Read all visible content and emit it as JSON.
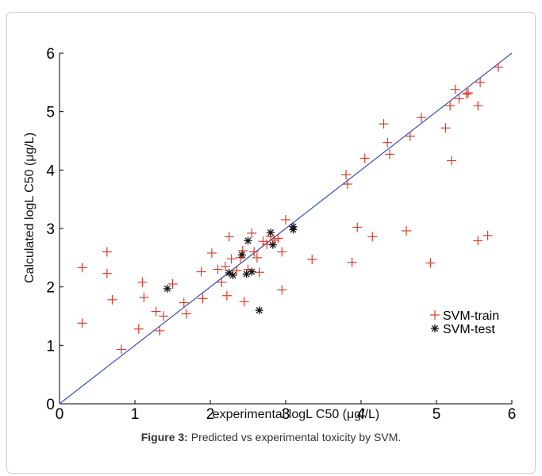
{
  "chart_data": {
    "type": "scatter",
    "xlabel": "experimental logL C50 (μg//L)",
    "ylabel": "Calculated logL C50 (μg/L)",
    "xlim": [
      0,
      6
    ],
    "ylim": [
      0,
      6
    ],
    "xticks": [
      "0",
      "1",
      "2",
      "3",
      "4",
      "5",
      "6"
    ],
    "yticks": [
      "0",
      "1",
      "2",
      "3",
      "4",
      "5",
      "6"
    ],
    "grid": false,
    "legend_position": "lower-right",
    "reference_line": {
      "x": [
        0,
        6
      ],
      "y": [
        0,
        6
      ],
      "color": "#3a4fb5"
    },
    "series": [
      {
        "name": "SVM-train",
        "marker": "+",
        "color": "#d93b2b",
        "points": [
          [
            0.3,
            2.33
          ],
          [
            0.3,
            1.38
          ],
          [
            0.63,
            2.6
          ],
          [
            0.63,
            2.23
          ],
          [
            0.7,
            1.78
          ],
          [
            0.82,
            0.93
          ],
          [
            1.05,
            1.28
          ],
          [
            1.1,
            2.08
          ],
          [
            1.12,
            1.82
          ],
          [
            1.28,
            1.58
          ],
          [
            1.33,
            1.25
          ],
          [
            1.38,
            1.5
          ],
          [
            1.5,
            2.05
          ],
          [
            1.65,
            1.73
          ],
          [
            1.68,
            1.54
          ],
          [
            1.88,
            2.26
          ],
          [
            1.9,
            1.8
          ],
          [
            2.02,
            2.58
          ],
          [
            2.1,
            2.3
          ],
          [
            2.15,
            2.08
          ],
          [
            2.2,
            2.35
          ],
          [
            2.22,
            1.85
          ],
          [
            2.25,
            2.86
          ],
          [
            2.28,
            2.48
          ],
          [
            2.35,
            2.28
          ],
          [
            2.4,
            2.5
          ],
          [
            2.43,
            2.62
          ],
          [
            2.45,
            1.75
          ],
          [
            2.5,
            2.3
          ],
          [
            2.55,
            2.92
          ],
          [
            2.58,
            2.6
          ],
          [
            2.62,
            2.5
          ],
          [
            2.65,
            2.25
          ],
          [
            2.7,
            2.78
          ],
          [
            2.75,
            2.73
          ],
          [
            2.8,
            2.86
          ],
          [
            2.85,
            2.8
          ],
          [
            2.9,
            2.83
          ],
          [
            2.95,
            2.6
          ],
          [
            2.95,
            1.95
          ],
          [
            3.0,
            3.15
          ],
          [
            3.35,
            2.47
          ],
          [
            3.8,
            3.92
          ],
          [
            3.82,
            3.76
          ],
          [
            3.88,
            2.42
          ],
          [
            3.95,
            3.02
          ],
          [
            4.05,
            4.2
          ],
          [
            4.15,
            2.86
          ],
          [
            4.3,
            4.79
          ],
          [
            4.35,
            4.47
          ],
          [
            4.38,
            4.27
          ],
          [
            4.6,
            2.96
          ],
          [
            4.65,
            4.58
          ],
          [
            4.8,
            4.9
          ],
          [
            4.92,
            2.41
          ],
          [
            5.12,
            4.72
          ],
          [
            5.18,
            5.1
          ],
          [
            5.2,
            4.16
          ],
          [
            5.25,
            5.38
          ],
          [
            5.3,
            5.22
          ],
          [
            5.4,
            5.3
          ],
          [
            5.42,
            5.32
          ],
          [
            5.55,
            5.1
          ],
          [
            5.55,
            2.79
          ],
          [
            5.58,
            5.5
          ],
          [
            5.68,
            2.88
          ],
          [
            5.82,
            5.76
          ]
        ]
      },
      {
        "name": "SVM-test",
        "marker": "*",
        "color": "#111111",
        "points": [
          [
            1.43,
            1.97
          ],
          [
            2.25,
            2.24
          ],
          [
            2.3,
            2.2
          ],
          [
            2.42,
            2.55
          ],
          [
            2.48,
            2.22
          ],
          [
            2.5,
            2.79
          ],
          [
            2.55,
            2.26
          ],
          [
            2.65,
            1.6
          ],
          [
            2.8,
            2.93
          ],
          [
            2.83,
            2.72
          ],
          [
            3.1,
            2.98
          ],
          [
            3.1,
            3.03
          ]
        ]
      }
    ]
  },
  "caption": {
    "label": "Figure 3:",
    "text": " Predicted vs experimental toxicity by SVM."
  }
}
